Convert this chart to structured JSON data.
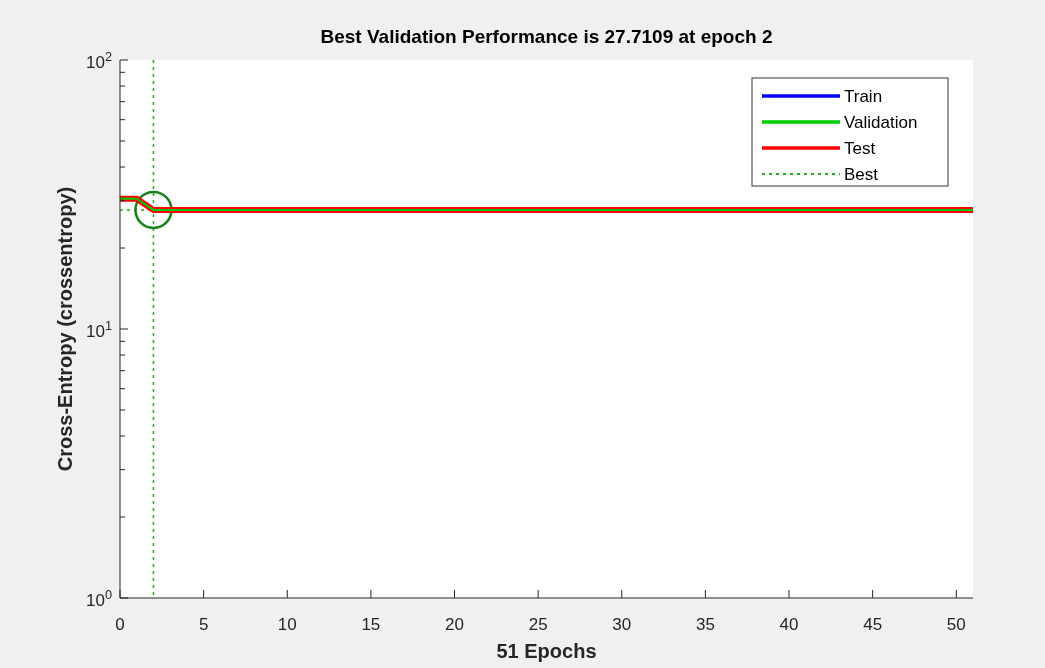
{
  "chart_data": {
    "type": "line",
    "title": "Best Validation Performance is 27.7109 at epoch 2",
    "xlabel": "51 Epochs",
    "ylabel": "Cross-Entropy  (crossentropy)",
    "x": [
      0,
      1,
      2,
      51
    ],
    "series": [
      {
        "name": "Train",
        "color": "#0000ff",
        "values": [
          null,
          null,
          null,
          null
        ]
      },
      {
        "name": "Validation",
        "color": "#00cc00",
        "values": [
          30.5,
          30.5,
          27.71,
          27.71
        ]
      },
      {
        "name": "Test",
        "color": "#ff0000",
        "values": [
          30.5,
          30.5,
          27.71,
          27.71
        ]
      },
      {
        "type": "scatter",
        "color": "#1a801a",
        "marker": "circle",
        "x": [
          2
        ],
        "values": [
          27.7109
        ]
      }
    ],
    "ref_lines": [
      {
        "axis": "x",
        "value": 2,
        "color": "#22aa22",
        "line_style": "dotted"
      },
      {
        "axis": "y",
        "value": 27.7109,
        "label": "Best",
        "color": "#22aa22",
        "line_style": "dotted"
      }
    ],
    "log": "y",
    "xlim": [
      0,
      51
    ],
    "ylim": [
      1,
      100
    ],
    "xticks": [
      0,
      5,
      10,
      15,
      20,
      25,
      30,
      35,
      40,
      45,
      50
    ],
    "yticks": [
      {
        "value": 1,
        "label": "10$^{0}$"
      },
      {
        "value": 2,
        "label": null
      },
      {
        "value": 3,
        "label": null
      },
      {
        "value": 4,
        "label": null
      },
      {
        "value": 5,
        "label": null
      },
      {
        "value": 6,
        "label": null
      },
      {
        "value": 7,
        "label": null
      },
      {
        "value": 8,
        "label": null
      },
      {
        "value": 9,
        "label": null
      },
      {
        "value": 10,
        "label": "10$^{1}$"
      },
      {
        "value": 20,
        "label": null
      },
      {
        "value": 30,
        "label": null
      },
      {
        "value": 40,
        "label": null
      },
      {
        "value": 50,
        "label": null
      },
      {
        "value": 60,
        "label": null
      },
      {
        "value": 70,
        "label": null
      },
      {
        "value": 80,
        "label": null
      },
      {
        "value": 90,
        "label": null
      },
      {
        "value": 100,
        "label": "10$^{2}$"
      }
    ],
    "legend": "top right",
    "grid": false,
    "line_style": "solid"
  }
}
